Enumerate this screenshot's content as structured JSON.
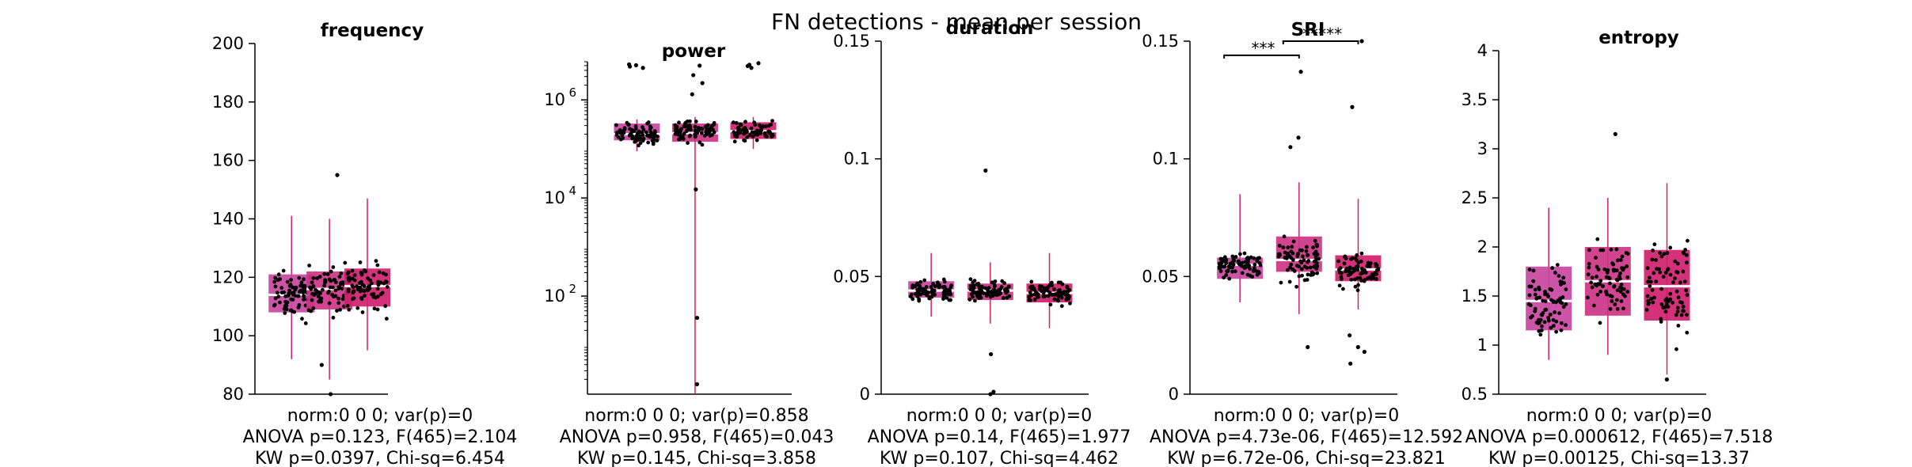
{
  "figure": {
    "title": "FN detections - mean per session"
  },
  "colors": {
    "group_fills": [
      "#c9479f",
      "#cd3585",
      "#d01f6c"
    ],
    "median": "#ffffff",
    "whisker": "#d01f6c",
    "dot": "#000000",
    "axis": "#000000"
  },
  "chart_data": [
    {
      "type": "box",
      "title": "frequency",
      "scale": "linear",
      "ylim": [
        80,
        200
      ],
      "yticks": [
        80,
        100,
        120,
        140,
        160,
        180,
        200
      ],
      "ytick_labels": [
        "80",
        "100",
        "120",
        "140",
        "160",
        "180",
        "200"
      ],
      "groups": [
        {
          "q1": 108,
          "median": 114,
          "q3": 121,
          "whisker_low": 92,
          "whisker_high": 141
        },
        {
          "q1": 109,
          "median": 116,
          "q3": 122,
          "whisker_low": 85,
          "whisker_high": 140
        },
        {
          "q1": 110,
          "median": 117,
          "q3": 123,
          "whisker_low": 95,
          "whisker_high": 147
        }
      ],
      "outliers": [
        [],
        [
          155,
          90,
          80
        ],
        []
      ],
      "significance": [],
      "stats": [
        "norm:0  0  0; var(p)=0",
        "ANOVA p=0.123, F(465)=2.104",
        "KW p=0.0397, Chi-sq=6.454"
      ]
    },
    {
      "type": "box",
      "title": "power",
      "scale": "log",
      "ylim": [
        1,
        6000000
      ],
      "yticks": [
        100,
        10000,
        1000000
      ],
      "ytick_labels": [
        "10",
        "10",
        "10"
      ],
      "ytick_exponents": [
        "2",
        "4",
        "6"
      ],
      "groups": [
        {
          "q1": 150000,
          "median": 200000,
          "q3": 330000,
          "whisker_low": 90000,
          "whisker_high": 400000
        },
        {
          "q1": 140000,
          "median": 210000,
          "q3": 330000,
          "whisker_low": 1,
          "whisker_high": 450000
        },
        {
          "q1": 160000,
          "median": 230000,
          "q3": 350000,
          "whisker_low": 100000,
          "whisker_high": 450000
        }
      ],
      "outliers": [
        [
          4800000,
          5100000,
          4500000,
          5300000
        ],
        [
          5000000,
          3200000,
          2200000,
          1300000,
          15000,
          36,
          1.6
        ],
        [
          4500000,
          5200000,
          4900000,
          5600000
        ]
      ],
      "significance": [],
      "stats": [
        "norm:0  0  0; var(p)=0.858",
        "ANOVA p=0.958, F(465)=0.043",
        "KW p=0.145, Chi-sq=3.858"
      ]
    },
    {
      "type": "box",
      "title": "duration",
      "scale": "linear",
      "ylim": [
        0,
        0.15
      ],
      "yticks": [
        0,
        0.05,
        0.1,
        0.15
      ],
      "ytick_labels": [
        "0",
        "0.05",
        "0.1",
        "0.15"
      ],
      "groups": [
        {
          "q1": 0.041,
          "median": 0.044,
          "q3": 0.048,
          "whisker_low": 0.033,
          "whisker_high": 0.06
        },
        {
          "q1": 0.04,
          "median": 0.044,
          "q3": 0.047,
          "whisker_low": 0.03,
          "whisker_high": 0.056
        },
        {
          "q1": 0.039,
          "median": 0.043,
          "q3": 0.047,
          "whisker_low": 0.028,
          "whisker_high": 0.06
        }
      ],
      "outliers": [
        [],
        [
          0.095,
          0.017,
          0.001,
          0.0
        ],
        []
      ],
      "significance": [],
      "stats": [
        "norm:0  0  0; var(p)=0",
        "ANOVA p=0.14, F(465)=1.977",
        "KW p=0.107, Chi-sq=4.462"
      ]
    },
    {
      "type": "box",
      "title": "SRI",
      "scale": "linear",
      "ylim": [
        0,
        0.15
      ],
      "yticks": [
        0,
        0.05,
        0.1,
        0.15
      ],
      "ytick_labels": [
        "0",
        "0.05",
        "0.1",
        "0.15"
      ],
      "groups": [
        {
          "q1": 0.049,
          "median": 0.055,
          "q3": 0.058,
          "whisker_low": 0.039,
          "whisker_high": 0.085
        },
        {
          "q1": 0.052,
          "median": 0.057,
          "q3": 0.067,
          "whisker_low": 0.034,
          "whisker_high": 0.09
        },
        {
          "q1": 0.048,
          "median": 0.053,
          "q3": 0.059,
          "whisker_low": 0.036,
          "whisker_high": 0.083
        }
      ],
      "outliers": [
        [],
        [
          0.137,
          0.109,
          0.105,
          0.02
        ],
        [
          0.15,
          0.122,
          0.025,
          0.02,
          0.018,
          0.013
        ]
      ],
      "significance": [
        {
          "from": 0,
          "to": 1,
          "y": 0.144,
          "label": "***"
        },
        {
          "from": 1,
          "to": 2,
          "y": 0.15,
          "label": "*****"
        }
      ],
      "stats": [
        "norm:0  0  0; var(p)=0",
        "ANOVA p=4.73e-06, F(465)=12.592",
        "KW p=6.72e-06, Chi-sq=23.821"
      ]
    },
    {
      "type": "box",
      "title": "entropy",
      "scale": "linear",
      "ylim": [
        0.5,
        4
      ],
      "yticks": [
        0.5,
        1,
        1.5,
        2,
        2.5,
        3,
        3.5,
        4
      ],
      "ytick_labels": [
        "0.5",
        "1",
        "1.5",
        "2",
        "2.5",
        "3",
        "3.5",
        "4"
      ],
      "groups": [
        {
          "q1": 1.15,
          "median": 1.45,
          "q3": 1.8,
          "whisker_low": 0.85,
          "whisker_high": 2.4
        },
        {
          "q1": 1.3,
          "median": 1.65,
          "q3": 2.0,
          "whisker_low": 0.9,
          "whisker_high": 2.5
        },
        {
          "q1": 1.25,
          "median": 1.6,
          "q3": 1.97,
          "whisker_low": 0.7,
          "whisker_high": 2.65
        }
      ],
      "outliers": [
        [],
        [
          3.15
        ],
        [
          0.65
        ]
      ],
      "significance": [],
      "stats": [
        "norm:0  0  0; var(p)=0",
        "ANOVA p=0.000612, F(465)=7.518",
        "KW p=0.00125, Chi-sq=13.37"
      ]
    }
  ]
}
